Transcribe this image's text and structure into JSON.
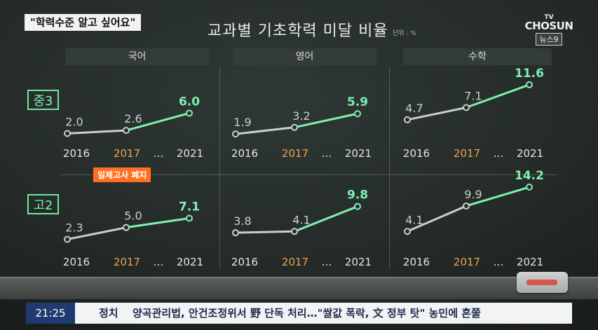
{
  "quote": "\"학력수준 알고 싶어요\"",
  "title": "교과별 기초학력 미달 비율",
  "unit": "단위 : %",
  "logo": {
    "line1": "TV",
    "line2": "CHOSUN",
    "line3": "뉴스9"
  },
  "annotation": "일제고사 폐지",
  "colors": {
    "green": "#7ef2ae",
    "gray": "#c9cfcc",
    "orange": "#f0a04b",
    "tag": "#ff6f1f"
  },
  "ticker": {
    "time": "21:25",
    "category": "정치",
    "headline": "양곡관리법, 안건조정위서 野 단독 처리…\"쌀값 폭락, 文 정부 탓\" 농민에 혼쭐"
  },
  "chart_data": {
    "type": "line",
    "subjects": [
      "국어",
      "영어",
      "수학"
    ],
    "grades": [
      "중3",
      "고2"
    ],
    "x": [
      "2016",
      "2017",
      "…",
      "2021"
    ],
    "panels": [
      {
        "subject": "국어",
        "grade": "중3",
        "values": [
          2.0,
          2.6,
          6.0
        ],
        "labels": [
          "2.0",
          "2.6",
          "6.0"
        ]
      },
      {
        "subject": "영어",
        "grade": "중3",
        "values": [
          1.9,
          3.2,
          5.9
        ],
        "labels": [
          "1.9",
          "3.2",
          "5.9"
        ]
      },
      {
        "subject": "수학",
        "grade": "중3",
        "values": [
          4.7,
          7.1,
          11.6
        ],
        "labels": [
          "4.7",
          "7.1",
          "11.6"
        ]
      },
      {
        "subject": "국어",
        "grade": "고2",
        "values": [
          2.3,
          5.0,
          7.1
        ],
        "labels": [
          "2.3",
          "5.0",
          "7.1"
        ]
      },
      {
        "subject": "영어",
        "grade": "고2",
        "values": [
          3.8,
          4.1,
          9.8
        ],
        "labels": [
          "3.8",
          "4.1",
          "9.8"
        ]
      },
      {
        "subject": "수학",
        "grade": "고2",
        "values": [
          4.1,
          9.9,
          14.2
        ],
        "labels": [
          "4.1",
          "9.9",
          "14.2"
        ]
      }
    ]
  }
}
